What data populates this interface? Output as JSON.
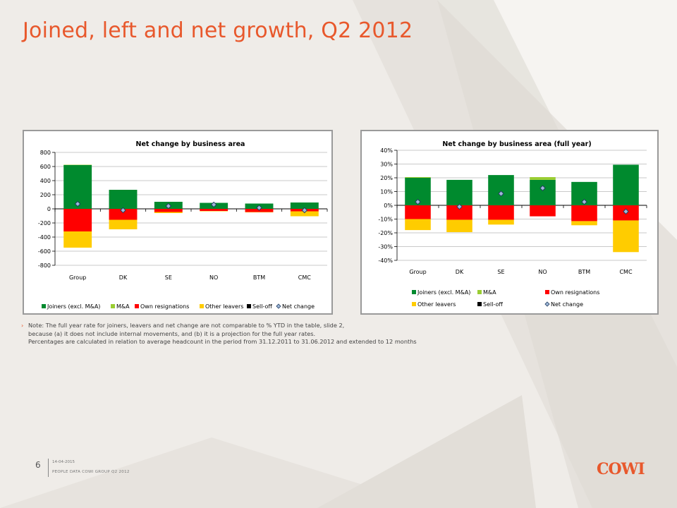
{
  "slide": {
    "title": "Joined, left and net growth, Q2 2012",
    "note_lines": [
      "Note: The full year rate for joiners, leavers and net change are not comparable to % YTD in the table, slide 2,",
      "because (a) it does not include internal movements, and (b) it is a projection for the full year rates.",
      "Percentages are calculated in relation to average headcount in the period from 31.12.2011 to 31.06.2012 and extended to 12 months"
    ],
    "note_bullet": "›",
    "page_number": "6",
    "footer_date": "14-04-2015",
    "footer_doc": "PEOPLE DATA COWI GROUP Q2 2012",
    "logo_text": "COWI"
  },
  "colors": {
    "joiners": "#008a2e",
    "ma": "#9acd32",
    "own_resignations": "#ff0000",
    "other_leavers": "#ffcc00",
    "sell_off": "#000000",
    "net_change": "#9fb8d8",
    "title": "#e8582c"
  },
  "chart_data": [
    {
      "type": "bar",
      "stacked": true,
      "title": "Net change by business area",
      "categories": [
        "Group",
        "DK",
        "SE",
        "NO",
        "BTM",
        "CMC"
      ],
      "ylim": [
        -800,
        800
      ],
      "yticks": [
        800,
        600,
        400,
        200,
        0,
        -200,
        -400,
        -600,
        -800
      ],
      "ytick_labels": [
        "800",
        "600",
        "400",
        "200",
        "0",
        "-200",
        "-400",
        "-600",
        "-800"
      ],
      "grid": true,
      "legend_position": "bottom",
      "series": [
        {
          "name": "Joiners (excl. M&A)",
          "values": [
            620,
            270,
            100,
            85,
            75,
            90
          ]
        },
        {
          "name": "M&A",
          "values": [
            5,
            0,
            0,
            0,
            0,
            0
          ]
        },
        {
          "name": "Own resignations",
          "values": [
            -320,
            -155,
            -45,
            -30,
            -45,
            -35
          ]
        },
        {
          "name": "Other leavers",
          "values": [
            -230,
            -135,
            -15,
            -5,
            -5,
            -70
          ]
        },
        {
          "name": "Sell-off",
          "values": [
            0,
            0,
            0,
            0,
            0,
            0
          ]
        },
        {
          "name": "Net change",
          "values": [
            70,
            -20,
            40,
            60,
            15,
            -20
          ]
        }
      ]
    },
    {
      "type": "bar",
      "stacked": true,
      "title": "Net change by business area (full year)",
      "categories": [
        "Group",
        "DK",
        "SE",
        "NO",
        "BTM",
        "CMC"
      ],
      "ylim": [
        -40,
        40
      ],
      "yticks": [
        40,
        30,
        20,
        10,
        0,
        -10,
        -20,
        -30,
        -40
      ],
      "ytick_labels": [
        "40%",
        "30%",
        "20%",
        "10%",
        "0%",
        "-10%",
        "-20%",
        "-30%",
        "-40%"
      ],
      "ylabel_unit": "%",
      "grid": true,
      "legend_position": "bottom",
      "series": [
        {
          "name": "Joiners (excl. M&A)",
          "values": [
            20,
            18.5,
            22,
            18.5,
            17,
            29.5
          ]
        },
        {
          "name": "M&A",
          "values": [
            0.5,
            0,
            0,
            2,
            0,
            0
          ]
        },
        {
          "name": "Own resignations",
          "values": [
            -10,
            -10.5,
            -10.5,
            -8,
            -11.5,
            -11
          ]
        },
        {
          "name": "Other leavers",
          "values": [
            -8,
            -9,
            -3.5,
            0,
            -3,
            -23
          ]
        },
        {
          "name": "Sell-off",
          "values": [
            0,
            0,
            0,
            0,
            0,
            0
          ]
        },
        {
          "name": "Net change",
          "values": [
            2.5,
            -1,
            8.5,
            12.5,
            2.5,
            -4.5
          ]
        }
      ]
    }
  ]
}
